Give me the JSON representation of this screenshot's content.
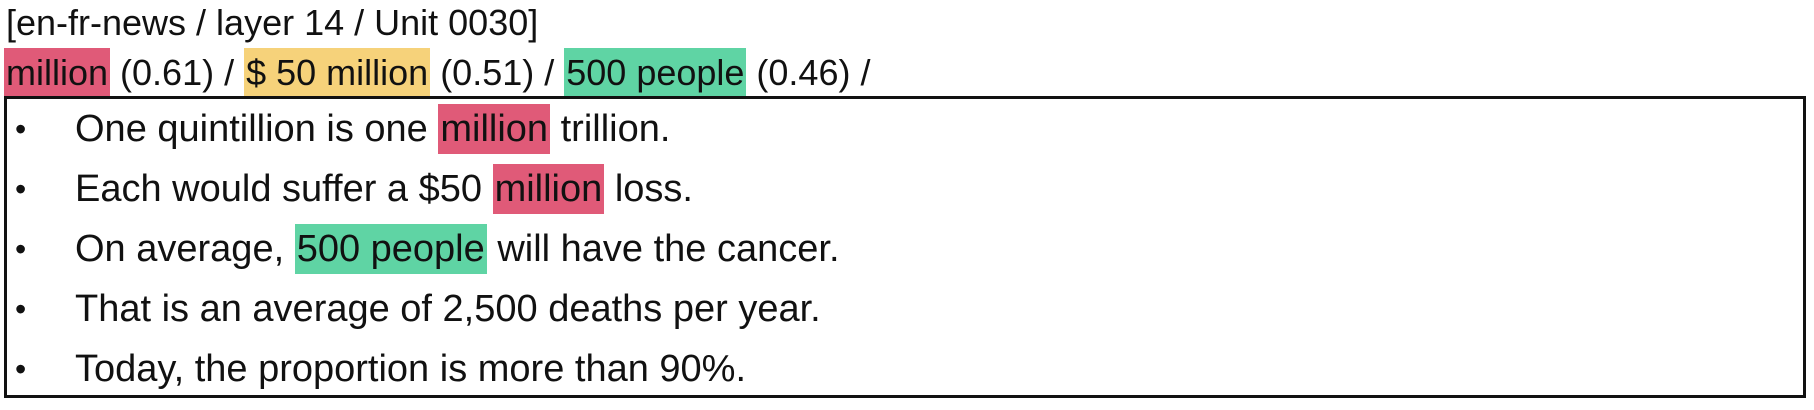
{
  "header": {
    "title": "[en-fr-news / layer 14 / Unit 0030]"
  },
  "colors": {
    "red": "#e05a78",
    "yellow": "#f6d27a",
    "green": "#5fd4a4"
  },
  "summary": {
    "separator": " / ",
    "items": [
      {
        "token": "million",
        "score": "(0.61)",
        "color": "#e05a78"
      },
      {
        "token": "$ 50 million",
        "score": "(0.51)",
        "color": "#f6d27a"
      },
      {
        "token": "500 people",
        "score": "(0.46)",
        "color": "#5fd4a4"
      }
    ],
    "trailing": " /"
  },
  "examples": {
    "bullet": "•",
    "items": [
      {
        "segments": [
          {
            "text": "One quintillion is one "
          },
          {
            "text": "million",
            "color": "#e05a78"
          },
          {
            "text": " trillion."
          }
        ]
      },
      {
        "segments": [
          {
            "text": "Each would suffer a $50 "
          },
          {
            "text": "million",
            "color": "#e05a78"
          },
          {
            "text": " loss."
          }
        ]
      },
      {
        "segments": [
          {
            "text": "On average, "
          },
          {
            "text": "500 people",
            "color": "#5fd4a4"
          },
          {
            "text": " will have the cancer."
          }
        ]
      },
      {
        "segments": [
          {
            "text": "That is an average of 2,500 deaths per year."
          }
        ]
      },
      {
        "segments": [
          {
            "text": "Today, the proportion is more than 90%."
          }
        ]
      }
    ]
  }
}
